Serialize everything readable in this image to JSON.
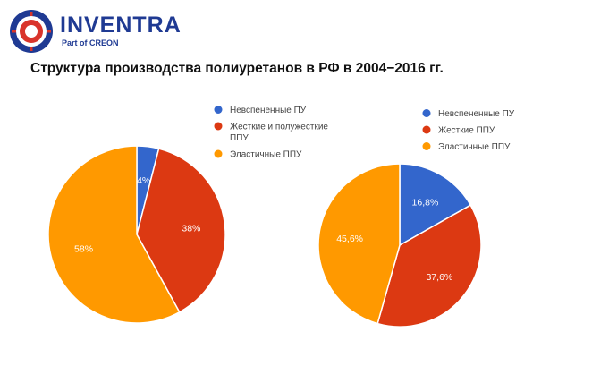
{
  "brand": {
    "name": "INVENTRA",
    "sub": "Part of CREON",
    "colors": {
      "primary": "#1f3a93",
      "accent": "#d9342b"
    }
  },
  "title": "Структура производства полиуретанов в РФ в  2004−2016 гг.",
  "chart_data": [
    {
      "type": "pie",
      "title": "",
      "labels": [
        "Невспененные ПУ",
        "Жесткие и полужесткие ППУ",
        "Эластичные ППУ"
      ],
      "legend_lines": [
        [
          "Невспененные ПУ"
        ],
        [
          "Жесткие и полужесткие",
          "ППУ"
        ],
        [
          "Эластичные ППУ"
        ]
      ],
      "values": [
        4,
        38,
        58
      ],
      "value_labels": [
        "4%",
        "38%",
        "58%"
      ],
      "colors": [
        "#3366cc",
        "#dc3912",
        "#ff9900"
      ],
      "legend_position": "top-right"
    },
    {
      "type": "pie",
      "title": "",
      "labels": [
        "Невспененные ПУ",
        "Жесткие ППУ",
        "Эластичные ППУ"
      ],
      "legend_lines": [
        [
          "Невспененные ПУ"
        ],
        [
          "Жесткие ППУ"
        ],
        [
          "Эластичные ППУ"
        ]
      ],
      "values": [
        16.8,
        37.6,
        45.6
      ],
      "value_labels": [
        "16,8%",
        "37,6%",
        "45,6%"
      ],
      "colors": [
        "#3366cc",
        "#dc3912",
        "#ff9900"
      ],
      "legend_position": "top-right"
    }
  ]
}
